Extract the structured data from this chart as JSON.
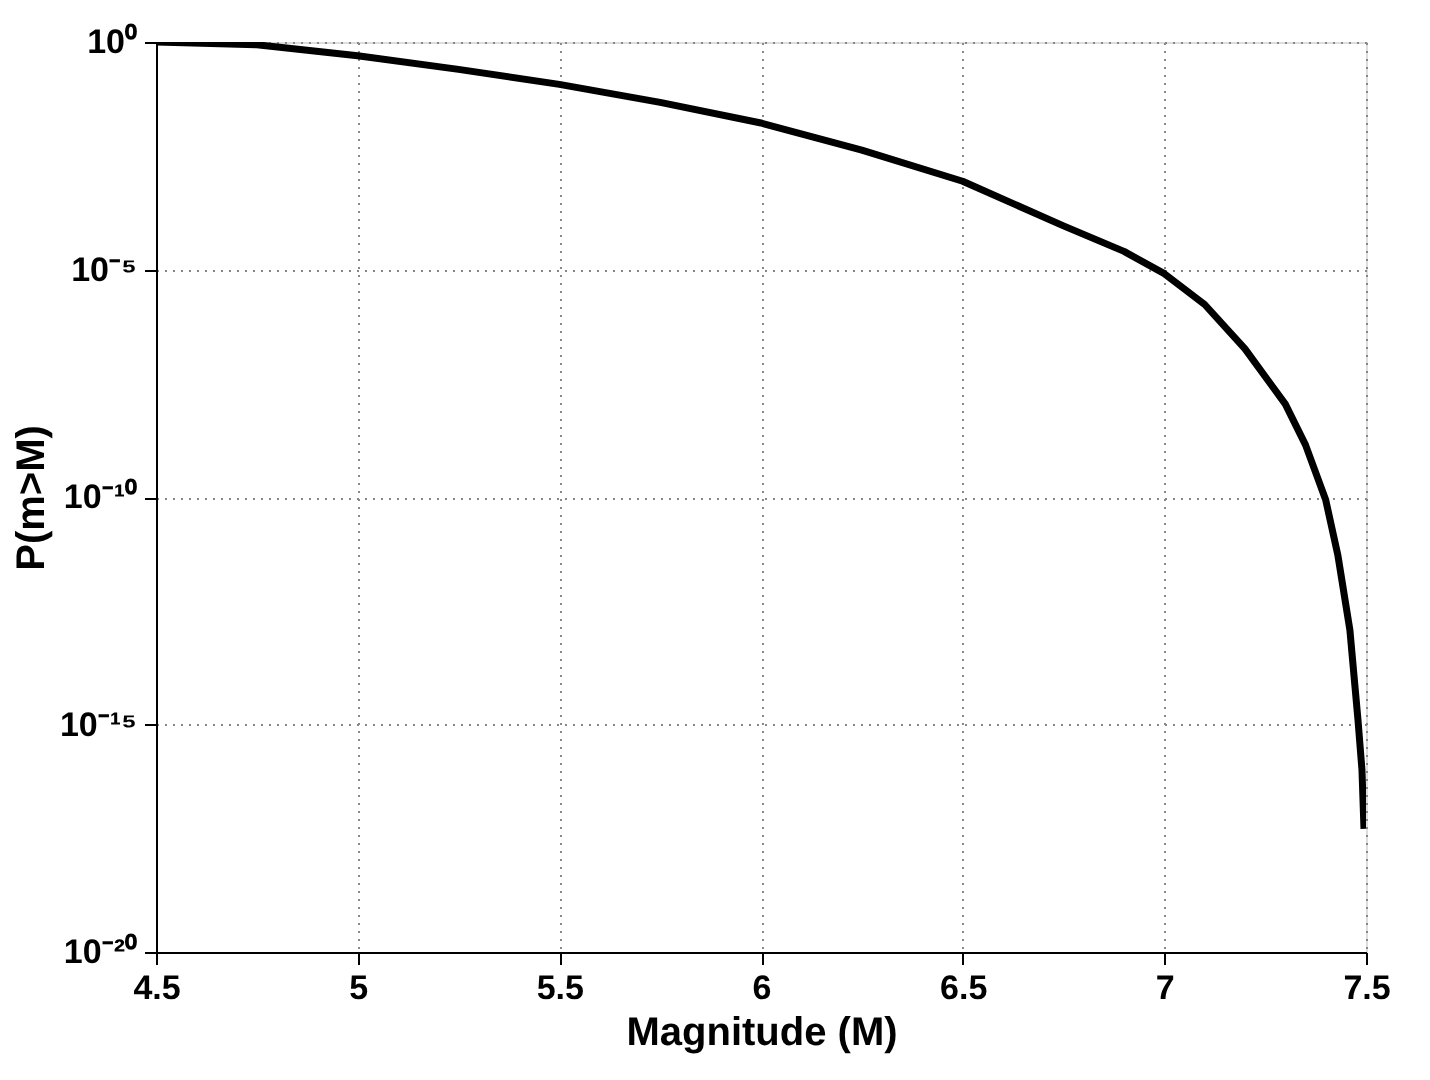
{
  "chart_data": {
    "type": "line",
    "xlabel": "Magnitude (M)",
    "ylabel": "P(m>M)",
    "x": [
      4.5,
      4.75,
      5,
      5.25,
      5.5,
      5.75,
      6,
      6.25,
      6.5,
      6.75,
      6.9,
      7,
      7.1,
      7.2,
      7.3,
      7.35,
      7.4,
      7.43,
      7.46,
      7.48,
      7.49,
      7.495
    ],
    "series": [
      {
        "color": "#000000",
        "values": [
          1,
          0.87,
          0.5,
          0.25,
          0.117,
          0.047,
          0.0166,
          0.0042,
          0.00087,
          9.1e-05,
          2.5e-05,
          8.1e-06,
          1.7e-06,
          1.8e-07,
          1.1e-08,
          1.4e-09,
          8.7e-11,
          5.4e-12,
          1.2e-13,
          1.3e-15,
          1e-16,
          5.1e-18
        ]
      }
    ],
    "log": "y",
    "xlim": [
      4.5,
      7.5
    ],
    "xticks": [
      4.5,
      5,
      5.5,
      6,
      6.5,
      7,
      7.5
    ],
    "ylim": [
      1e-20,
      1
    ],
    "yticks": [
      {
        "value": 1e-20,
        "label": "10⁻²⁰"
      },
      {
        "value": 1e-15,
        "label": "10⁻¹⁵"
      },
      {
        "value": 1e-10,
        "label": "10⁻¹⁰"
      },
      {
        "value": 1e-05,
        "label": "10⁻⁵"
      },
      {
        "value": 1,
        "label": "10⁰"
      }
    ],
    "grid": true,
    "line_style": "solid",
    "marker": "none"
  }
}
